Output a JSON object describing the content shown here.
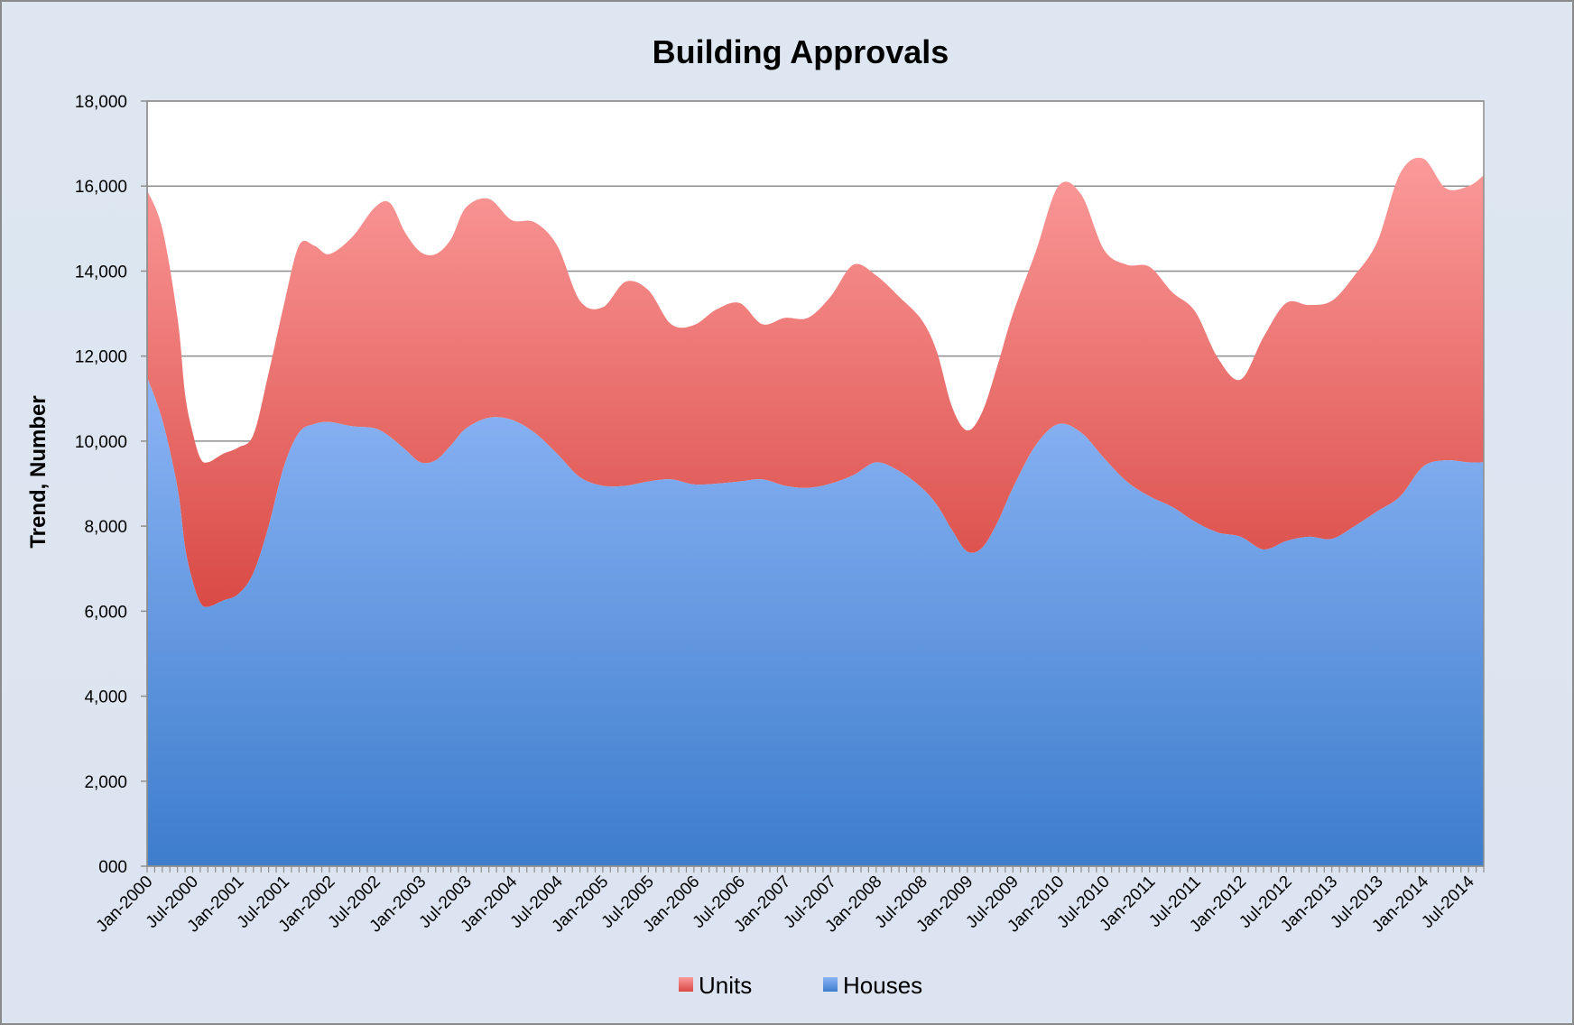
{
  "chart_data": {
    "type": "area",
    "stacked": true,
    "title": "Building Approvals",
    "ylabel": "Trend, Number",
    "xlabel": "",
    "ylim": [
      0,
      18000
    ],
    "y_ticks": [
      0,
      2000,
      4000,
      6000,
      8000,
      10000,
      12000,
      14000,
      16000,
      18000
    ],
    "y_tick_labels": [
      "000",
      "2,000",
      "4,000",
      "6,000",
      "8,000",
      "10,000",
      "12,000",
      "14,000",
      "16,000",
      "18,000"
    ],
    "x_tick_labels": [
      "Jan-2000",
      "Jul-2000",
      "Jan-2001",
      "Jul-2001",
      "Jan-2002",
      "Jul-2002",
      "Jan-2003",
      "Jul-2003",
      "Jan-2004",
      "Jul-2004",
      "Jan-2005",
      "Jul-2005",
      "Jan-2006",
      "Jul-2006",
      "Jan-2007",
      "Jul-2007",
      "Jan-2008",
      "Jul-2008",
      "Jan-2009",
      "Jul-2009",
      "Jan-2010",
      "Jul-2010",
      "Jan-2011",
      "Jul-2011",
      "Jan-2012",
      "Jul-2012",
      "Jan-2013",
      "Jul-2013",
      "Jan-2014",
      "Jul-2014"
    ],
    "x_start": "Jan-2000",
    "x_end": "Sep-2014",
    "grid": "horizontal",
    "legend_position": "bottom",
    "series": [
      {
        "name": "Houses",
        "color_top": "#8cb4f5",
        "color_bottom": "#3d7dcc",
        "points": [
          [
            "Jan-2000",
            11500
          ],
          [
            "Mar-2000",
            10500
          ],
          [
            "May-2000",
            8900
          ],
          [
            "Jun-2000",
            7500
          ],
          [
            "Jul-2000",
            6700
          ],
          [
            "Aug-2000",
            6200
          ],
          [
            "Sep-2000",
            6100
          ],
          [
            "Nov-2000",
            6250
          ],
          [
            "Jan-2001",
            6400
          ],
          [
            "Mar-2001",
            6900
          ],
          [
            "May-2001",
            8000
          ],
          [
            "Jul-2001",
            9400
          ],
          [
            "Sep-2001",
            10200
          ],
          [
            "Nov-2001",
            10400
          ],
          [
            "Jan-2002",
            10450
          ],
          [
            "Apr-2002",
            10350
          ],
          [
            "Jul-2002",
            10300
          ],
          [
            "Sep-2002",
            10100
          ],
          [
            "Nov-2002",
            9800
          ],
          [
            "Jan-2003",
            9500
          ],
          [
            "Mar-2003",
            9550
          ],
          [
            "May-2003",
            9900
          ],
          [
            "Jul-2003",
            10300
          ],
          [
            "Oct-2003",
            10550
          ],
          [
            "Jan-2004",
            10500
          ],
          [
            "Apr-2004",
            10200
          ],
          [
            "Jul-2004",
            9700
          ],
          [
            "Oct-2004",
            9150
          ],
          [
            "Jan-2005",
            8950
          ],
          [
            "Apr-2005",
            8950
          ],
          [
            "Jul-2005",
            9050
          ],
          [
            "Oct-2005",
            9100
          ],
          [
            "Jan-2006",
            8980
          ],
          [
            "Apr-2006",
            9000
          ],
          [
            "Jul-2006",
            9050
          ],
          [
            "Oct-2006",
            9100
          ],
          [
            "Jan-2007",
            8950
          ],
          [
            "Apr-2007",
            8900
          ],
          [
            "Jul-2007",
            9000
          ],
          [
            "Oct-2007",
            9200
          ],
          [
            "Jan-2008",
            9500
          ],
          [
            "Apr-2008",
            9300
          ],
          [
            "Jul-2008",
            8900
          ],
          [
            "Sep-2008",
            8500
          ],
          [
            "Nov-2008",
            7900
          ],
          [
            "Jan-2009",
            7400
          ],
          [
            "Mar-2009",
            7500
          ],
          [
            "May-2009",
            8100
          ],
          [
            "Jul-2009",
            8900
          ],
          [
            "Oct-2009",
            9900
          ],
          [
            "Jan-2010",
            10400
          ],
          [
            "Apr-2010",
            10200
          ],
          [
            "Jul-2010",
            9600
          ],
          [
            "Oct-2010",
            9050
          ],
          [
            "Jan-2011",
            8700
          ],
          [
            "Apr-2011",
            8450
          ],
          [
            "Jul-2011",
            8100
          ],
          [
            "Oct-2011",
            7850
          ],
          [
            "Jan-2012",
            7750
          ],
          [
            "Apr-2012",
            7450
          ],
          [
            "Jul-2012",
            7650
          ],
          [
            "Oct-2012",
            7750
          ],
          [
            "Jan-2013",
            7700
          ],
          [
            "Apr-2013",
            8000
          ],
          [
            "Jul-2013",
            8350
          ],
          [
            "Oct-2013",
            8700
          ],
          [
            "Jan-2014",
            9400
          ],
          [
            "Apr-2014",
            9550
          ],
          [
            "Jul-2014",
            9500
          ],
          [
            "Sep-2014",
            9500
          ]
        ]
      },
      {
        "name": "Units",
        "color_top": "#fb9a9a",
        "color_bottom": "#d94a45",
        "points": [
          [
            "Jan-2000",
            4400
          ],
          [
            "Mar-2000",
            4500
          ],
          [
            "May-2000",
            4000
          ],
          [
            "Jun-2000",
            3600
          ],
          [
            "Jul-2000",
            3500
          ],
          [
            "Aug-2000",
            3400
          ],
          [
            "Sep-2000",
            3400
          ],
          [
            "Nov-2000",
            3450
          ],
          [
            "Jan-2001",
            3450
          ],
          [
            "Mar-2001",
            3250
          ],
          [
            "May-2001",
            3600
          ],
          [
            "Jul-2001",
            3800
          ],
          [
            "Sep-2001",
            4400
          ],
          [
            "Nov-2001",
            4200
          ],
          [
            "Jan-2002",
            3950
          ],
          [
            "Apr-2002",
            4450
          ],
          [
            "Jul-2002",
            5200
          ],
          [
            "Sep-2002",
            5500
          ],
          [
            "Nov-2002",
            5100
          ],
          [
            "Jan-2003",
            4950
          ],
          [
            "Mar-2003",
            4850
          ],
          [
            "May-2003",
            4850
          ],
          [
            "Jul-2003",
            5200
          ],
          [
            "Oct-2003",
            5150
          ],
          [
            "Jan-2004",
            4700
          ],
          [
            "Apr-2004",
            4950
          ],
          [
            "Jul-2004",
            4900
          ],
          [
            "Oct-2004",
            4150
          ],
          [
            "Jan-2005",
            4200
          ],
          [
            "Apr-2005",
            4800
          ],
          [
            "Jul-2005",
            4500
          ],
          [
            "Oct-2005",
            3650
          ],
          [
            "Jan-2006",
            3750
          ],
          [
            "Apr-2006",
            4100
          ],
          [
            "Jul-2006",
            4200
          ],
          [
            "Oct-2006",
            3650
          ],
          [
            "Jan-2007",
            3950
          ],
          [
            "Apr-2007",
            4000
          ],
          [
            "Jul-2007",
            4400
          ],
          [
            "Oct-2007",
            4950
          ],
          [
            "Jan-2008",
            4400
          ],
          [
            "Apr-2008",
            4100
          ],
          [
            "Jul-2008",
            3950
          ],
          [
            "Sep-2008",
            3600
          ],
          [
            "Nov-2008",
            2900
          ],
          [
            "Jan-2009",
            2850
          ],
          [
            "Mar-2009",
            3200
          ],
          [
            "May-2009",
            3700
          ],
          [
            "Jul-2009",
            4100
          ],
          [
            "Oct-2009",
            4550
          ],
          [
            "Jan-2010",
            5600
          ],
          [
            "Apr-2010",
            5600
          ],
          [
            "Jul-2010",
            4900
          ],
          [
            "Oct-2010",
            5100
          ],
          [
            "Jan-2011",
            5400
          ],
          [
            "Apr-2011",
            5050
          ],
          [
            "Jul-2011",
            4950
          ],
          [
            "Oct-2011",
            4100
          ],
          [
            "Jan-2012",
            3700
          ],
          [
            "Apr-2012",
            5000
          ],
          [
            "Jul-2012",
            5600
          ],
          [
            "Oct-2012",
            5450
          ],
          [
            "Jan-2013",
            5600
          ],
          [
            "Apr-2013",
            5900
          ],
          [
            "Jul-2013",
            6350
          ],
          [
            "Oct-2013",
            7600
          ],
          [
            "Jan-2014",
            7250
          ],
          [
            "Apr-2014",
            6400
          ],
          [
            "Jul-2014",
            6500
          ],
          [
            "Sep-2014",
            6750
          ]
        ]
      }
    ]
  }
}
